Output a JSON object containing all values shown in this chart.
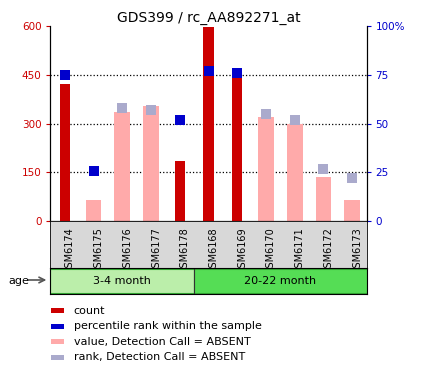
{
  "title": "GDS399 / rc_AA892271_at",
  "samples": [
    "GSM6174",
    "GSM6175",
    "GSM6176",
    "GSM6177",
    "GSM6178",
    "GSM6168",
    "GSM6169",
    "GSM6170",
    "GSM6171",
    "GSM6172",
    "GSM6173"
  ],
  "n_group1": 5,
  "n_group2": 6,
  "group1_label": "3-4 month",
  "group2_label": "20-22 month",
  "count": [
    420,
    null,
    null,
    null,
    185,
    595,
    470,
    null,
    null,
    null,
    null
  ],
  "percentile_right": [
    75,
    26,
    null,
    null,
    52,
    77,
    76,
    null,
    null,
    null,
    null
  ],
  "absent_value": [
    null,
    65,
    335,
    355,
    null,
    null,
    null,
    320,
    300,
    135,
    65
  ],
  "absent_rank_right": [
    null,
    null,
    58,
    57,
    null,
    null,
    null,
    55,
    52,
    27,
    22
  ],
  "ylim_left": [
    0,
    600
  ],
  "ylim_right": [
    0,
    100
  ],
  "yticks_left": [
    0,
    150,
    300,
    450,
    600
  ],
  "yticks_right": [
    0,
    25,
    50,
    75,
    100
  ],
  "ytick_labels_left": [
    "0",
    "150",
    "300",
    "450",
    "600"
  ],
  "ytick_labels_right": [
    "0",
    "25",
    "50",
    "75",
    "100%"
  ],
  "count_color": "#cc0000",
  "percentile_color": "#0000cc",
  "absent_value_color": "#ffaaaa",
  "absent_rank_color": "#aaaacc",
  "group1_color": "#bbeeaa",
  "group2_color": "#55dd55",
  "grid_color": "black",
  "grid_linestyle": "dotted",
  "grid_linewidth": 0.9,
  "count_bar_width": 0.35,
  "absent_bar_width": 0.55,
  "marker_size": 7,
  "label_fontsize": 7,
  "tick_fontsize": 7.5,
  "title_fontsize": 10,
  "age_fontsize": 8,
  "legend_fontsize": 8
}
